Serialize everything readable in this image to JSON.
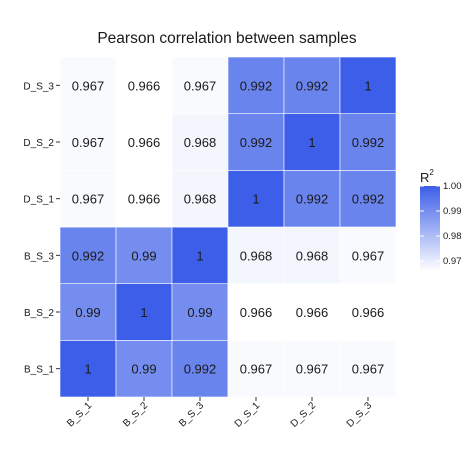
{
  "chart_data": {
    "type": "heatmap",
    "title": "Pearson correlation between samples",
    "x_categories": [
      "B_S_1",
      "B_S_2",
      "B_S_3",
      "D_S_1",
      "D_S_2",
      "D_S_3"
    ],
    "y_categories": [
      "B_S_1",
      "B_S_2",
      "B_S_3",
      "D_S_1",
      "D_S_2",
      "D_S_3"
    ],
    "values": [
      [
        "1",
        "0.99",
        "0.992",
        "0.967",
        "0.967",
        "0.967"
      ],
      [
        "0.99",
        "1",
        "0.99",
        "0.966",
        "0.966",
        "0.966"
      ],
      [
        "0.992",
        "0.99",
        "1",
        "0.968",
        "0.968",
        "0.967"
      ],
      [
        "0.967",
        "0.966",
        "0.968",
        "1",
        "0.992",
        "0.992"
      ],
      [
        "0.967",
        "0.966",
        "0.968",
        "0.992",
        "1",
        "0.992"
      ],
      [
        "0.967",
        "0.966",
        "0.967",
        "0.992",
        "0.992",
        "1"
      ]
    ],
    "legend": {
      "title": "R",
      "title_superscript": "2",
      "ticks": [
        "1.00",
        "0.99",
        "0.98",
        "0.97"
      ],
      "range": [
        0.966,
        1.0
      ],
      "low_color": "#ffffff",
      "high_color": "#3c5ee8",
      "placement": "right"
    }
  }
}
